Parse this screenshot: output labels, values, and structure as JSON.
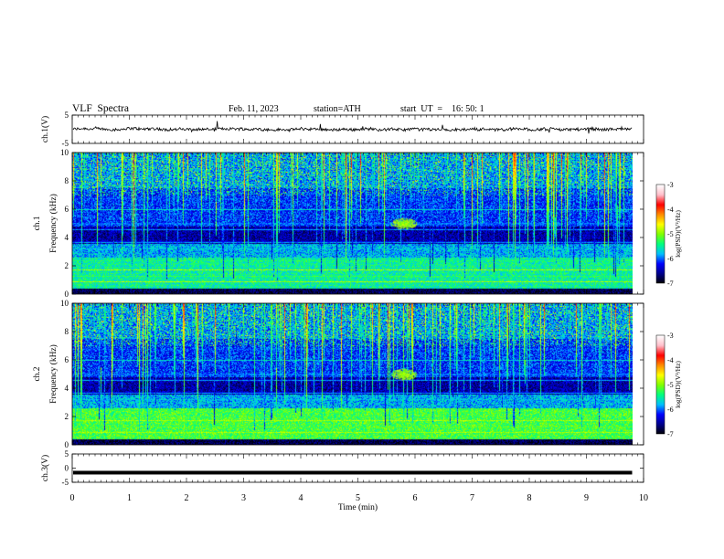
{
  "header": {
    "title": "VLF  Spectra",
    "date": "Feb. 11, 2023",
    "station": "station=ATH",
    "start_ut": "start  UT  =    16: 50: 1"
  },
  "chart_data": [
    {
      "type": "line",
      "panel": "ch1-waveform",
      "ylabel": "ch.1(V)",
      "yticks": [
        "5",
        "-5"
      ],
      "ylim": [
        -5,
        5
      ],
      "xlim": [
        0,
        10
      ],
      "signal_end_min": 9.8,
      "level_v": 0
    },
    {
      "type": "heatmap",
      "panel": "ch1-spectrogram",
      "ylabel": "ch.1\nFrequency  (kHz)",
      "yticks": [
        "0",
        "2",
        "4",
        "6",
        "8",
        "10"
      ],
      "ylim": [
        0,
        10
      ],
      "xlim": [
        0,
        10
      ],
      "data_end_min": 9.8,
      "colorbar": {
        "label": "log(PSD)(V²/Hz)",
        "ticks": [
          "-3",
          "-4",
          "-5",
          "-6",
          "-7"
        ],
        "range": [
          -7,
          -3
        ]
      }
    },
    {
      "type": "heatmap",
      "panel": "ch2-spectrogram",
      "ylabel": "ch.2\nFrequency  (kHz)",
      "yticks": [
        "0",
        "2",
        "4",
        "6",
        "8",
        "10"
      ],
      "ylim": [
        0,
        10
      ],
      "xlim": [
        0,
        10
      ],
      "data_end_min": 9.8,
      "colorbar": {
        "label": "log(PSD)(V²/Hz)",
        "ticks": [
          "-3",
          "-4",
          "-5",
          "-6",
          "-7"
        ],
        "range": [
          -7,
          -3
        ]
      }
    },
    {
      "type": "line",
      "panel": "ch3-waveform",
      "ylabel": "ch.3(V)",
      "yticks": [
        "5",
        "0",
        "-5"
      ],
      "ylim": [
        -5,
        5
      ],
      "xlim": [
        0,
        10
      ],
      "signal_end_min": 9.8,
      "level_v": -1.6
    }
  ],
  "x_axis": {
    "label": "Time  (min)",
    "ticks": [
      "0",
      "1",
      "2",
      "3",
      "4",
      "5",
      "6",
      "7",
      "8",
      "9",
      "10"
    ]
  },
  "colorscale": [
    "#000000",
    "#00008b",
    "#0000ff",
    "#00bfff",
    "#00ff7f",
    "#7fff00",
    "#ffff00",
    "#ff8c00",
    "#ff0000",
    "#ffc0cb",
    "#ffffff"
  ]
}
